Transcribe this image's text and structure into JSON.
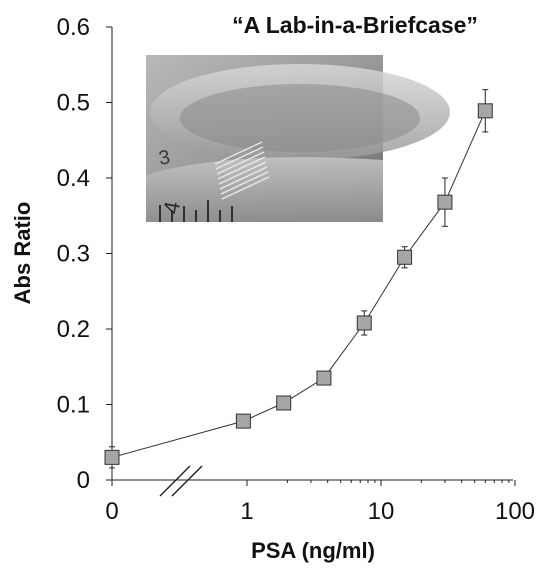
{
  "chart_data": {
    "type": "scatter",
    "title": "“A Lab-in-a-Briefcase”",
    "xlabel": "PSA (ng/ml)",
    "ylabel": "Abs Ratio",
    "x_scale": "log with broken axis (0 plotted separately)",
    "xlim": [
      1,
      100
    ],
    "x_ticks": [
      "0",
      "1",
      "10",
      "100"
    ],
    "ylim": [
      0,
      0.6
    ],
    "y_ticks": [
      "0",
      "0.1",
      "0.2",
      "0.3",
      "0.4",
      "0.5",
      "0.6"
    ],
    "grid": false,
    "legend": "none",
    "marker_color": "#a6a6a6",
    "line_color": "#333333",
    "points": [
      {
        "x": 0,
        "y": 0.03,
        "err": 0.014
      },
      {
        "x": 0.94,
        "y": 0.078,
        "err": 0
      },
      {
        "x": 1.88,
        "y": 0.102,
        "err": 0
      },
      {
        "x": 3.75,
        "y": 0.135,
        "err": 0
      },
      {
        "x": 7.5,
        "y": 0.208,
        "err": 0.016
      },
      {
        "x": 15,
        "y": 0.295,
        "err": 0.014
      },
      {
        "x": 30,
        "y": 0.368,
        "err": 0.032
      },
      {
        "x": 60,
        "y": 0.489,
        "err": 0.028
      }
    ],
    "inset_image": "photo of a microfluidic film strip next to a ruler"
  }
}
